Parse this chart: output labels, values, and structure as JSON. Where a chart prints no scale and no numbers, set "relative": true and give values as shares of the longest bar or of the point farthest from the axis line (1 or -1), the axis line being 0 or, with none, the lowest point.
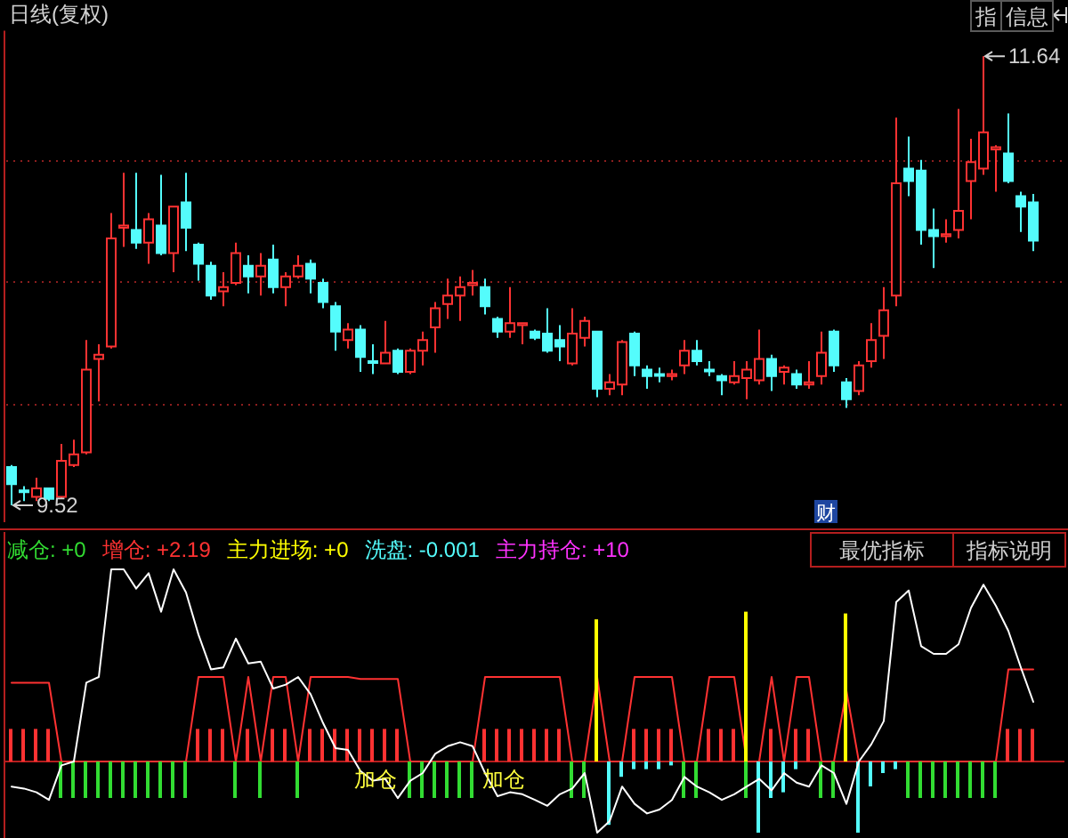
{
  "chart_data": [
    {
      "type": "candlestick",
      "title": "日线(复权)",
      "categories": [
        null,
        null,
        null,
        null,
        null,
        null,
        null,
        null,
        null,
        null,
        null,
        null,
        null,
        null,
        null,
        null,
        null,
        null,
        null,
        null,
        null,
        null,
        null,
        null,
        null,
        null,
        null,
        null,
        null,
        null,
        null,
        null,
        null,
        null,
        null,
        null,
        null,
        null,
        null,
        null,
        null,
        null,
        null,
        null,
        null,
        null,
        null,
        null,
        null,
        null,
        null,
        null,
        null,
        null,
        null,
        null,
        null,
        null,
        null,
        null,
        null,
        null,
        null,
        null,
        null,
        null,
        null,
        null,
        null,
        null,
        null,
        null,
        null,
        null,
        null,
        null,
        null,
        null,
        null,
        null,
        null,
        null,
        null
      ],
      "ohlc": [
        [
          9.7,
          9.71,
          9.52,
          9.62
        ],
        [
          9.59,
          9.61,
          9.54,
          9.59
        ],
        [
          9.56,
          9.65,
          9.54,
          9.6
        ],
        [
          9.6,
          9.6,
          9.54,
          9.55
        ],
        [
          9.56,
          9.81,
          9.55,
          9.73
        ],
        [
          9.71,
          9.83,
          9.7,
          9.76
        ],
        [
          9.77,
          10.3,
          9.76,
          10.16
        ],
        [
          10.21,
          10.28,
          10.01,
          10.23
        ],
        [
          10.27,
          10.9,
          10.26,
          10.78
        ],
        [
          10.83,
          11.09,
          10.74,
          10.84
        ],
        [
          10.82,
          11.09,
          10.73,
          10.76
        ],
        [
          10.76,
          10.9,
          10.66,
          10.87
        ],
        [
          10.84,
          11.08,
          10.7,
          10.71
        ],
        [
          10.71,
          10.93,
          10.62,
          10.93
        ],
        [
          10.95,
          11.09,
          10.72,
          10.83
        ],
        [
          10.75,
          10.76,
          10.58,
          10.66
        ],
        [
          10.65,
          10.67,
          10.49,
          10.51
        ],
        [
          10.53,
          10.62,
          10.46,
          10.55
        ],
        [
          10.57,
          10.76,
          10.56,
          10.71
        ],
        [
          10.65,
          10.7,
          10.52,
          10.6
        ],
        [
          10.6,
          10.71,
          10.51,
          10.65
        ],
        [
          10.68,
          10.75,
          10.52,
          10.55
        ],
        [
          10.55,
          10.62,
          10.46,
          10.6
        ],
        [
          10.6,
          10.7,
          10.59,
          10.65
        ],
        [
          10.66,
          10.68,
          10.52,
          10.59
        ],
        [
          10.57,
          10.59,
          10.45,
          10.48
        ],
        [
          10.46,
          10.48,
          10.25,
          10.34
        ],
        [
          10.3,
          10.38,
          10.26,
          10.35
        ],
        [
          10.35,
          10.37,
          10.15,
          10.22
        ],
        [
          10.2,
          10.28,
          10.14,
          10.2
        ],
        [
          10.19,
          10.39,
          10.19,
          10.24
        ],
        [
          10.25,
          10.26,
          10.14,
          10.15
        ],
        [
          10.15,
          10.26,
          10.14,
          10.25
        ],
        [
          10.25,
          10.34,
          10.18,
          10.3
        ],
        [
          10.36,
          10.48,
          10.24,
          10.45
        ],
        [
          10.47,
          10.59,
          10.4,
          10.51
        ],
        [
          10.51,
          10.6,
          10.39,
          10.55
        ],
        [
          10.56,
          10.63,
          10.51,
          10.57
        ],
        [
          10.55,
          10.59,
          10.42,
          10.46
        ],
        [
          10.4,
          10.41,
          10.31,
          10.34
        ],
        [
          10.34,
          10.55,
          10.31,
          10.38
        ],
        [
          10.37,
          10.38,
          10.28,
          10.38
        ],
        [
          10.34,
          10.35,
          10.3,
          10.31
        ],
        [
          10.33,
          10.45,
          10.24,
          10.25
        ],
        [
          10.3,
          10.37,
          10.2,
          10.27
        ],
        [
          10.19,
          10.45,
          10.18,
          10.33
        ],
        [
          10.31,
          10.41,
          10.27,
          10.39
        ],
        [
          10.34,
          10.34,
          10.03,
          10.07
        ],
        [
          10.07,
          10.14,
          10.04,
          10.1
        ],
        [
          10.09,
          10.3,
          10.04,
          10.29
        ],
        [
          10.33,
          10.34,
          10.13,
          10.18
        ],
        [
          10.16,
          10.18,
          10.07,
          10.13
        ],
        [
          10.14,
          10.17,
          10.1,
          10.14
        ],
        [
          10.13,
          10.16,
          10.11,
          10.14
        ],
        [
          10.18,
          10.3,
          10.14,
          10.25
        ],
        [
          10.25,
          10.3,
          10.18,
          10.2
        ],
        [
          10.16,
          10.2,
          10.13,
          10.16
        ],
        [
          10.13,
          10.14,
          10.04,
          10.11
        ],
        [
          10.1,
          10.2,
          10.09,
          10.13
        ],
        [
          10.12,
          10.2,
          10.02,
          10.16
        ],
        [
          10.11,
          10.35,
          10.09,
          10.21
        ],
        [
          10.21,
          10.23,
          10.06,
          10.13
        ],
        [
          10.15,
          10.18,
          10.09,
          10.17
        ],
        [
          10.14,
          10.16,
          10.07,
          10.09
        ],
        [
          10.09,
          10.2,
          10.07,
          10.1
        ],
        [
          10.13,
          10.34,
          10.09,
          10.24
        ],
        [
          10.34,
          10.35,
          10.15,
          10.18
        ],
        [
          10.1,
          10.12,
          9.98,
          10.02
        ],
        [
          10.06,
          10.2,
          10.04,
          10.18
        ],
        [
          10.2,
          10.38,
          10.17,
          10.3
        ],
        [
          10.32,
          10.55,
          10.21,
          10.44
        ],
        [
          10.51,
          11.35,
          10.46,
          11.04
        ],
        [
          11.11,
          11.26,
          10.98,
          11.05
        ],
        [
          11.1,
          11.15,
          10.75,
          10.82
        ],
        [
          10.82,
          10.92,
          10.64,
          10.79
        ],
        [
          10.79,
          10.87,
          10.76,
          10.8
        ],
        [
          10.82,
          11.39,
          10.78,
          10.91
        ],
        [
          11.05,
          11.25,
          10.87,
          11.14
        ],
        [
          11.11,
          11.64,
          11.08,
          11.28
        ],
        [
          11.2,
          11.22,
          11.0,
          11.21
        ],
        [
          11.18,
          11.37,
          11.04,
          11.05
        ],
        [
          10.98,
          11.0,
          10.81,
          10.93
        ],
        [
          10.95,
          10.99,
          10.72,
          10.77
        ]
      ],
      "colors": [
        "#54fcfc",
        "#54fcfc",
        "#ff3232",
        "#54fcfc",
        "#ff3232",
        "#ff3232",
        "#ff3232",
        "#ff3232",
        "#ff3232",
        "#ff3232",
        "#54fcfc",
        "#ff3232",
        "#54fcfc",
        "#ff3232",
        "#54fcfc",
        "#54fcfc",
        "#54fcfc",
        "#ff3232",
        "#ff3232",
        "#54fcfc",
        "#ff3232",
        "#54fcfc",
        "#ff3232",
        "#ff3232",
        "#54fcfc",
        "#54fcfc",
        "#54fcfc",
        "#ff3232",
        "#54fcfc",
        "#54fcfc",
        "#ff3232",
        "#54fcfc",
        "#ff3232",
        "#ff3232",
        "#ff3232",
        "#ff3232",
        "#ff3232",
        "#ff3232",
        "#54fcfc",
        "#54fcfc",
        "#ff3232",
        "#ff3232",
        "#54fcfc",
        "#54fcfc",
        "#54fcfc",
        "#ff3232",
        "#ff3232",
        "#54fcfc",
        "#ff3232",
        "#ff3232",
        "#54fcfc",
        "#54fcfc",
        "#54fcfc",
        "#ff3232",
        "#ff3232",
        "#54fcfc",
        "#54fcfc",
        "#54fcfc",
        "#ff3232",
        "#ff3232",
        "#ff3232",
        "#54fcfc",
        "#ff3232",
        "#54fcfc",
        "#ff3232",
        "#ff3232",
        "#54fcfc",
        "#54fcfc",
        "#ff3232",
        "#ff3232",
        "#ff3232",
        "#ff3232",
        "#54fcfc",
        "#54fcfc",
        "#54fcfc",
        "#ff3232",
        "#ff3232",
        "#ff3232",
        "#ff3232",
        "#ff3232",
        "#54fcfc",
        "#54fcfc",
        "#54fcfc"
      ],
      "ylim": [
        9.44,
        11.76
      ],
      "yticks": [
        {
          "value": 10.0,
          "label": null
        },
        {
          "value": 10.58,
          "label": null
        },
        {
          "value": 11.15,
          "label": null
        }
      ],
      "grid": "y",
      "annotations": [
        "11.64",
        "9.52",
        "财",
        "指",
        "信息"
      ]
    },
    {
      "type": "bar",
      "relative": true,
      "categories": [
        null,
        null,
        null,
        null,
        null,
        null,
        null,
        null,
        null,
        null,
        null,
        null,
        null,
        null,
        null,
        null,
        null,
        null,
        null,
        null,
        null,
        null,
        null,
        null,
        null,
        null,
        null,
        null,
        null,
        null,
        null,
        null,
        null,
        null,
        null,
        null,
        null,
        null,
        null,
        null,
        null,
        null,
        null,
        null,
        null,
        null,
        null,
        null,
        null,
        null,
        null,
        null,
        null,
        null,
        null,
        null,
        null,
        null,
        null,
        null,
        null,
        null,
        null,
        null,
        null,
        null,
        null,
        null,
        null,
        null,
        null,
        null,
        null,
        null,
        null,
        null,
        null,
        null,
        null,
        null,
        null,
        null,
        null
      ],
      "series": [
        {
          "type": "line",
          "color": "#ff3232",
          "values": [
            0.41,
            0.41,
            0.41,
            0.41,
            0,
            0,
            0,
            0,
            0,
            0,
            0,
            0,
            0,
            0,
            0,
            0.44,
            0.44,
            0.44,
            0,
            0.44,
            0,
            0.44,
            0.44,
            0,
            0.44,
            0.44,
            0.44,
            0.44,
            0.43,
            0.43,
            0.43,
            0.43,
            0,
            0,
            0,
            0,
            0,
            0,
            0.44,
            0.44,
            0.44,
            0.44,
            0.44,
            0.44,
            0.44,
            0,
            0,
            0.44,
            0,
            0,
            0.44,
            0.44,
            0.44,
            0.44,
            0,
            0,
            0.44,
            0.44,
            0.44,
            0,
            0,
            0.44,
            0,
            0.44,
            0.44,
            0,
            0,
            0.37,
            0,
            0,
            0,
            0,
            0,
            0,
            0,
            0,
            0,
            0,
            0,
            0,
            0.48,
            0.48,
            0.48
          ]
        },
        {
          "name": "减仓: +0",
          "color": "#32dc32",
          "values": [
            null,
            null,
            null,
            null,
            -0.19,
            -0.19,
            -0.19,
            -0.19,
            -0.19,
            -0.19,
            -0.19,
            -0.19,
            -0.19,
            -0.19,
            -0.19,
            null,
            null,
            null,
            -0.19,
            null,
            -0.19,
            null,
            null,
            -0.19,
            null,
            null,
            null,
            null,
            null,
            null,
            null,
            null,
            -0.19,
            -0.19,
            -0.19,
            -0.19,
            -0.19,
            -0.19,
            null,
            null,
            null,
            null,
            null,
            null,
            null,
            -0.19,
            -0.19,
            null,
            null,
            null,
            null,
            null,
            null,
            null,
            -0.19,
            -0.19,
            null,
            null,
            null,
            -0.19,
            null,
            null,
            null,
            null,
            null,
            -0.19,
            -0.19,
            null,
            null,
            null,
            null,
            null,
            -0.19,
            -0.19,
            -0.19,
            -0.19,
            -0.19,
            -0.19,
            -0.19,
            -0.19,
            null,
            null,
            null
          ]
        },
        {
          "name": "增仓: +2.19",
          "color": "#ff3232",
          "values": [
            0.17,
            0.17,
            0.17,
            0.17,
            null,
            null,
            null,
            null,
            null,
            null,
            null,
            null,
            null,
            null,
            null,
            0.17,
            0.17,
            0.17,
            null,
            0.17,
            null,
            0.17,
            0.17,
            null,
            0.17,
            0.17,
            0.17,
            0.17,
            0.17,
            0.17,
            0.17,
            0.17,
            null,
            null,
            null,
            null,
            null,
            null,
            0.17,
            0.17,
            0.17,
            0.17,
            0.17,
            0.17,
            0.17,
            null,
            null,
            null,
            null,
            null,
            0.17,
            0.17,
            0.17,
            0.17,
            null,
            null,
            0.17,
            0.17,
            0.17,
            null,
            null,
            0.17,
            null,
            0.17,
            0.17,
            null,
            null,
            null,
            null,
            null,
            null,
            null,
            null,
            null,
            null,
            null,
            null,
            null,
            null,
            null,
            0.17,
            0.17,
            0.17
          ]
        },
        {
          "name": "主力进场: +0",
          "color": "#ffff00",
          "values": [
            null,
            null,
            null,
            null,
            null,
            null,
            null,
            null,
            null,
            null,
            null,
            null,
            null,
            null,
            null,
            null,
            null,
            null,
            null,
            null,
            null,
            null,
            null,
            null,
            null,
            null,
            null,
            null,
            null,
            null,
            null,
            null,
            null,
            null,
            null,
            null,
            null,
            null,
            null,
            null,
            null,
            null,
            null,
            null,
            null,
            null,
            null,
            0.74,
            null,
            null,
            null,
            null,
            null,
            null,
            null,
            null,
            null,
            null,
            null,
            0.78,
            null,
            null,
            null,
            null,
            null,
            null,
            null,
            0.77,
            null,
            null,
            null,
            null,
            null,
            null,
            null,
            null,
            null,
            null,
            null,
            null,
            null,
            null,
            null
          ]
        },
        {
          "name": "洗盘: -0.001",
          "color": "#54fcfc",
          "values": [
            null,
            null,
            null,
            null,
            null,
            null,
            null,
            null,
            null,
            null,
            null,
            null,
            null,
            null,
            null,
            null,
            null,
            null,
            null,
            null,
            null,
            null,
            null,
            null,
            null,
            null,
            null,
            null,
            null,
            null,
            null,
            null,
            null,
            null,
            null,
            null,
            null,
            null,
            null,
            null,
            null,
            null,
            null,
            null,
            null,
            null,
            null,
            null,
            -0.33,
            -0.08,
            -0.04,
            -0.04,
            -0.04,
            -0.02,
            null,
            null,
            null,
            null,
            null,
            null,
            -0.37,
            -0.19,
            -0.16,
            -0.04,
            null,
            null,
            null,
            null,
            -0.37,
            -0.13,
            -0.06,
            -0.04,
            null,
            null,
            null,
            null,
            null,
            null,
            null,
            null,
            null,
            null,
            null
          ]
        },
        {
          "name": "主力持仓: +10",
          "color": "#ff32ff",
          "type": "line",
          "values": [
            null,
            null,
            null,
            null,
            null,
            null,
            null,
            null,
            null,
            null,
            null,
            null,
            null,
            null,
            null,
            null,
            null,
            null,
            null,
            null,
            null,
            null,
            null,
            null,
            null,
            null,
            null,
            null,
            null,
            null,
            null,
            null,
            null,
            null,
            null,
            null,
            null,
            null,
            null,
            null,
            null,
            null,
            null,
            null,
            null,
            null,
            null,
            null,
            null,
            null,
            null,
            null,
            null,
            null,
            null,
            null,
            null,
            null,
            null,
            null,
            null,
            null,
            null,
            null,
            null,
            null,
            null,
            null,
            null,
            null,
            null,
            null,
            null,
            null,
            null,
            null,
            null,
            null,
            null,
            null,
            null,
            null,
            null
          ]
        },
        {
          "type": "line",
          "color": "#ffffff",
          "values": [
            -0.13,
            -0.14,
            -0.16,
            -0.2,
            -0.02,
            0.0,
            0.41,
            0.44,
            1.0,
            1.0,
            0.9,
            0.98,
            0.78,
            1.0,
            0.88,
            0.66,
            0.48,
            0.49,
            0.64,
            0.51,
            0.52,
            0.38,
            0.4,
            0.44,
            0.35,
            0.2,
            0.07,
            0.06,
            -0.05,
            -0.1,
            -0.09,
            -0.19,
            -0.1,
            -0.06,
            0.04,
            0.08,
            0.1,
            0.08,
            -0.06,
            -0.18,
            -0.16,
            -0.17,
            -0.2,
            -0.23,
            -0.17,
            -0.14,
            -0.06,
            -0.37,
            -0.31,
            -0.13,
            -0.22,
            -0.27,
            -0.25,
            -0.2,
            -0.08,
            -0.13,
            -0.16,
            -0.2,
            -0.17,
            -0.13,
            -0.09,
            -0.15,
            -0.06,
            -0.11,
            -0.13,
            -0.02,
            -0.06,
            -0.22,
            0.0,
            0.09,
            0.21,
            0.83,
            0.89,
            0.6,
            0.56,
            0.56,
            0.61,
            0.8,
            0.92,
            0.81,
            0.68,
            0.49,
            0.31
          ]
        }
      ],
      "ref_lines": [
        {
          "axis": "y",
          "value": 0,
          "color": "#b41e1e"
        }
      ],
      "annotations": [
        "最优指标",
        "指标说明",
        "加仓",
        "加仓"
      ]
    }
  ]
}
